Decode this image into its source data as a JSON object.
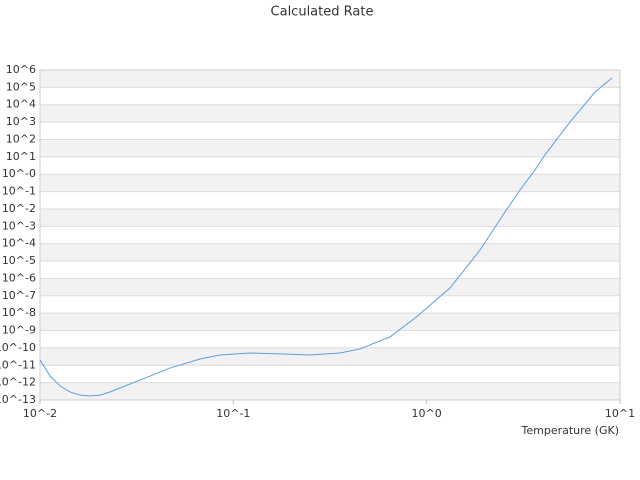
{
  "chart_data": {
    "type": "line",
    "title": "Calculated Rate",
    "x_label": "Temperature (GK)",
    "x_scale": "log",
    "y_scale": "log",
    "grid": true,
    "xlim": [
      0.01,
      10
    ],
    "ylim": [
      1e-13,
      1000000.0
    ],
    "xticks": [
      {
        "value": 0.01,
        "label": "10^-2"
      },
      {
        "value": 0.1,
        "label": "10^-1"
      },
      {
        "value": 1,
        "label": "10^0"
      },
      {
        "value": 10,
        "label": "10^1"
      }
    ],
    "yticks": [
      {
        "value": 1000000.0,
        "label": "10^6"
      },
      {
        "value": 100000.0,
        "label": "10^5"
      },
      {
        "value": 10000.0,
        "label": "10^4"
      },
      {
        "value": 1000.0,
        "label": "10^3"
      },
      {
        "value": 100.0,
        "label": "10^2"
      },
      {
        "value": 10,
        "label": "10^1"
      },
      {
        "value": 1,
        "label": "10^-0"
      },
      {
        "value": 0.1,
        "label": "10^-1"
      },
      {
        "value": 0.01,
        "label": "10^-2"
      },
      {
        "value": 0.001,
        "label": "10^-3"
      },
      {
        "value": 0.0001,
        "label": "10^-4"
      },
      {
        "value": 1e-05,
        "label": "10^-5"
      },
      {
        "value": 1e-06,
        "label": "10^-6"
      },
      {
        "value": 1e-07,
        "label": "10^-7"
      },
      {
        "value": 1e-08,
        "label": "10^-8"
      },
      {
        "value": 1e-09,
        "label": "10^-9"
      },
      {
        "value": 1e-10,
        "label": "10^-10"
      },
      {
        "value": 1e-11,
        "label": "10^-11"
      },
      {
        "value": 1e-12,
        "label": "10^-12"
      },
      {
        "value": 1e-13,
        "label": "10^-13"
      }
    ],
    "series": [
      {
        "color": "#5a9fe0",
        "x": [
          0.01,
          0.01127,
          0.0127,
          0.0143,
          0.0161,
          0.0181,
          0.0204,
          0.023,
          0.0292,
          0.0371,
          0.047,
          0.0673,
          0.0853,
          0.122,
          0.174,
          0.249,
          0.356,
          0.452,
          0.646,
          0.87,
          1.32,
          1.89,
          2.54,
          3.04,
          3.63,
          4.09,
          5.51,
          7.43,
          9.1
        ],
        "values": [
          2e-11,
          2.4e-12,
          6.5e-13,
          2.9e-13,
          1.9e-13,
          1.7e-13,
          1.9e-13,
          2.9e-13,
          8.3e-13,
          2.4e-12,
          6.9e-12,
          2.3e-11,
          3.9e-11,
          5.1e-11,
          4.5e-11,
          3.9e-11,
          5.1e-11,
          8.7e-11,
          4.3e-10,
          5.2e-09,
          2.8e-07,
          4.4e-05,
          0.0066,
          0.123,
          1.74,
          12.9,
          1020,
          54000.0,
          350000.0
        ]
      }
    ]
  }
}
